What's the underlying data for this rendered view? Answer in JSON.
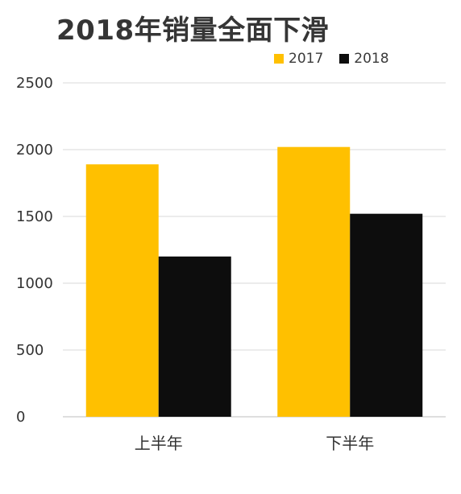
{
  "chart_data": {
    "type": "bar",
    "title": "2018年销量全面下滑",
    "categories": [
      "上半年",
      "下半年"
    ],
    "series": [
      {
        "name": "2017",
        "values": [
          1890,
          2020
        ],
        "color": "#FFC000"
      },
      {
        "name": "2018",
        "values": [
          1200,
          1520
        ],
        "color": "#0D0D0D"
      }
    ],
    "y_ticks": [
      "0",
      "500",
      "1000",
      "1500",
      "2000",
      "2500"
    ],
    "ylim": [
      0,
      2500
    ],
    "xlabel": "",
    "ylabel": "",
    "grid": true,
    "legend_position": "top-right"
  }
}
